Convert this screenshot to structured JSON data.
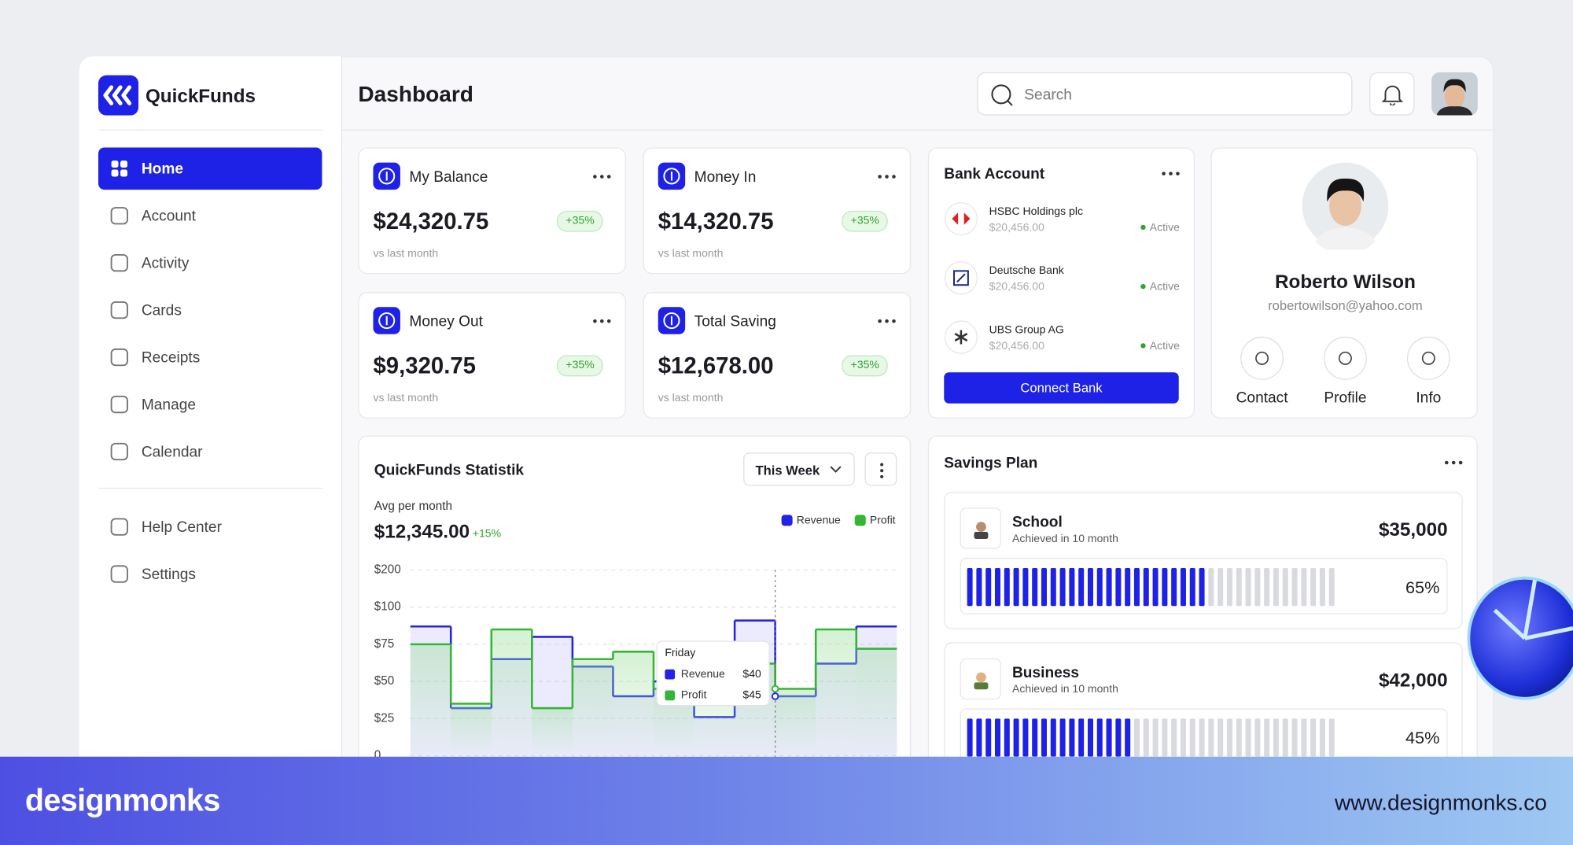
{
  "app": {
    "name": "QuickFunds"
  },
  "menu": {
    "items": [
      "Home",
      "Account",
      "Activity",
      "Cards",
      "Receipts",
      "Manage",
      "Calendar"
    ],
    "secondary": [
      "Help Center",
      "Settings"
    ]
  },
  "header": {
    "title": "Dashboard",
    "search_placeholder": "Search"
  },
  "stats": [
    {
      "title": "My Balance",
      "amount": "$24,320.75",
      "change": "+35%",
      "note": "vs last month"
    },
    {
      "title": "Money In",
      "amount": "$14,320.75",
      "change": "+35%",
      "note": "vs last month"
    },
    {
      "title": "Money Out",
      "amount": "$9,320.75",
      "change": "+35%",
      "note": "vs last month"
    },
    {
      "title": "Total Saving",
      "amount": "$12,678.00",
      "change": "+35%",
      "note": "vs last month"
    }
  ],
  "bank": {
    "title": "Bank Account",
    "accounts": [
      {
        "name": "HSBC Holdings plc",
        "amount": "$20,456.00",
        "status": "Active"
      },
      {
        "name": "Deutsche Bank",
        "amount": "$20,456.00",
        "status": "Active"
      },
      {
        "name": "UBS Group AG",
        "amount": "$20,456.00",
        "status": "Active"
      }
    ],
    "button": "Connect Bank"
  },
  "profile": {
    "name": "Roberto Wilson",
    "email": "robertowilson@yahoo.com",
    "actions": [
      "Contact",
      "Profile",
      "Info"
    ]
  },
  "statistik": {
    "title": "QuickFunds Statistik",
    "period": "This Week",
    "avg_label": "Avg per month",
    "avg_value": "$12,345.00",
    "avg_change": "+15%",
    "chart": {
      "type": "line",
      "step": true,
      "categories": [
        null,
        null,
        null,
        null,
        null,
        null,
        null,
        null,
        null,
        "Friday",
        null,
        null
      ],
      "series": [
        {
          "name": "Revenue",
          "color": "#2323e6",
          "values": [
            87,
            32,
            65,
            80,
            60,
            40,
            50,
            26,
            91,
            40,
            62,
            87
          ],
          "value_labels": [
            null,
            null,
            null,
            null,
            null,
            null,
            null,
            null,
            null,
            "$40",
            null,
            null
          ]
        },
        {
          "name": "Profit",
          "color": "#35b535",
          "values": [
            75,
            35,
            85,
            32,
            65,
            70,
            45,
            62,
            62,
            45,
            85,
            72
          ],
          "value_labels": [
            null,
            null,
            null,
            null,
            null,
            null,
            null,
            null,
            null,
            "$45",
            null,
            null
          ]
        }
      ],
      "ylim": [
        0,
        200
      ],
      "yticks": [
        0,
        {
          "value": 25,
          "label": "$25"
        },
        {
          "value": 50,
          "label": "$50"
        },
        {
          "value": 75,
          "label": "$75"
        },
        {
          "value": 100,
          "label": "$100"
        },
        {
          "value": 200,
          "label": "$200"
        }
      ],
      "grid": true
    }
  },
  "savings": {
    "title": "Savings Plan",
    "plans": [
      {
        "name": "School",
        "subtitle": "Achieved in 10 month",
        "amount": "$35,000",
        "progress": 65,
        "progress_label": "65%"
      },
      {
        "name": "Business",
        "subtitle": "Achieved in 10 month",
        "amount": "$42,000",
        "progress": 45,
        "progress_label": "45%"
      }
    ]
  },
  "footer": {
    "brand": "designmonks",
    "url": "www.designmonks.co"
  }
}
